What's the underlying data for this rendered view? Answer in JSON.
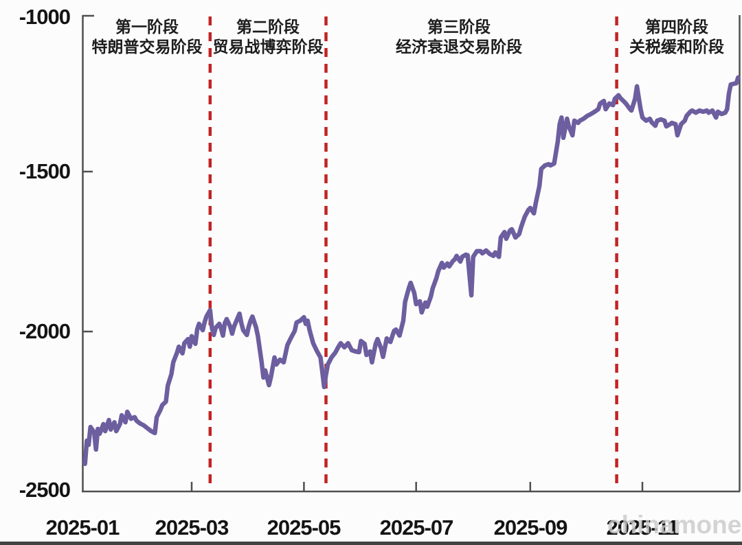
{
  "watermark": "chinamoney",
  "colors": {
    "line": "#6c5e9f",
    "dashed_line": "#c22323",
    "axis": "#4f4f4f",
    "label_text": "#141414",
    "watermark": "#c9c9c9"
  },
  "phases": [
    {
      "line1": "第一阶段",
      "line2": "特朗普交易阶段"
    },
    {
      "line1": "第二阶段",
      "line2": "贸易战博弈阶段"
    },
    {
      "line1": "第三阶段",
      "line2": "经济衰退交易阶段"
    },
    {
      "line1": "第四阶段",
      "line2": "关税缓和阶段"
    }
  ],
  "chart_data": {
    "type": "line",
    "title": "",
    "x_tick_labels": [
      "2025-01",
      "2025-03",
      "2025-05",
      "2025-07",
      "2025-09",
      "2025-11"
    ],
    "y_tick_labels": [
      "-1000",
      "-1500",
      "-2000",
      "-2500"
    ],
    "y_ticks": [
      -1000,
      -1500,
      -2000,
      -2500
    ],
    "ylim": [
      -2500,
      -1000
    ],
    "xrange": [
      "2025-01-01",
      "2025-12-24"
    ],
    "grid": false,
    "legend": "none",
    "annotations": {
      "vlines": [
        "2025-03-11",
        "2025-05-13",
        "2025-10-18"
      ],
      "phase_labels": [
        "第一阶段 特朗普交易阶段",
        "第二阶段 贸易战博弈阶段",
        "第三阶段 经济衰退交易阶段",
        "第四阶段 关税缓和阶段"
      ]
    },
    "series": [
      {
        "name": "",
        "dates": [
          "2025-01-02",
          "2025-01-03",
          "2025-01-04",
          "2025-01-05",
          "2025-01-07",
          "2025-01-08",
          "2025-01-09",
          "2025-01-10",
          "2025-01-12",
          "2025-01-13",
          "2025-01-15",
          "2025-01-16",
          "2025-01-18",
          "2025-01-19",
          "2025-01-21",
          "2025-01-22",
          "2025-01-24",
          "2025-01-25",
          "2025-01-27",
          "2025-01-29",
          "2025-01-30",
          "2025-02-01",
          "2025-02-03",
          "2025-02-05",
          "2025-02-07",
          "2025-02-09",
          "2025-02-10",
          "2025-02-12",
          "2025-02-13",
          "2025-02-15",
          "2025-02-16",
          "2025-02-18",
          "2025-02-19",
          "2025-02-21",
          "2025-02-22",
          "2025-02-24",
          "2025-02-25",
          "2025-02-27",
          "2025-02-28",
          "2025-03-01",
          "2025-03-02",
          "2025-03-03",
          "2025-03-04",
          "2025-03-05",
          "2025-03-07",
          "2025-03-08",
          "2025-03-09",
          "2025-03-11",
          "2025-03-12",
          "2025-03-13",
          "2025-03-14",
          "2025-03-16",
          "2025-03-17",
          "2025-03-18",
          "2025-03-19",
          "2025-03-20",
          "2025-03-22",
          "2025-03-23",
          "2025-03-24",
          "2025-03-26",
          "2025-03-27",
          "2025-03-28",
          "2025-03-29",
          "2025-03-31",
          "2025-04-01",
          "2025-04-02",
          "2025-04-03",
          "2025-04-05",
          "2025-04-06",
          "2025-04-08",
          "2025-04-09",
          "2025-04-10",
          "2025-04-12",
          "2025-04-13",
          "2025-04-15",
          "2025-04-16",
          "2025-04-18",
          "2025-04-20",
          "2025-04-22",
          "2025-04-24",
          "2025-04-26",
          "2025-04-27",
          "2025-04-29",
          "2025-05-01",
          "2025-05-02",
          "2025-05-03",
          "2025-05-04",
          "2025-05-06",
          "2025-05-08",
          "2025-05-10",
          "2025-05-11",
          "2025-05-12",
          "2025-05-13",
          "2025-05-14",
          "2025-05-16",
          "2025-05-18",
          "2025-05-20",
          "2025-05-21",
          "2025-05-23",
          "2025-05-25",
          "2025-05-27",
          "2025-05-29",
          "2025-05-31",
          "2025-06-01",
          "2025-06-03",
          "2025-06-04",
          "2025-06-06",
          "2025-06-07",
          "2025-06-09",
          "2025-06-10",
          "2025-06-12",
          "2025-06-13",
          "2025-06-15",
          "2025-06-17",
          "2025-06-19",
          "2025-06-20",
          "2025-06-22",
          "2025-06-24",
          "2025-06-25",
          "2025-06-27",
          "2025-06-28",
          "2025-06-30",
          "2025-07-01",
          "2025-07-03",
          "2025-07-04",
          "2025-07-06",
          "2025-07-07",
          "2025-07-09",
          "2025-07-10",
          "2025-07-12",
          "2025-07-13",
          "2025-07-15",
          "2025-07-16",
          "2025-07-18",
          "2025-07-19",
          "2025-07-21",
          "2025-07-22",
          "2025-07-23",
          "2025-07-25",
          "2025-07-26",
          "2025-07-28",
          "2025-07-29",
          "2025-07-31",
          "2025-08-01",
          "2025-08-03",
          "2025-08-05",
          "2025-08-06",
          "2025-08-08",
          "2025-08-10",
          "2025-08-12",
          "2025-08-13",
          "2025-08-15",
          "2025-08-16",
          "2025-08-18",
          "2025-08-19",
          "2025-08-21",
          "2025-08-22",
          "2025-08-24",
          "2025-08-26",
          "2025-08-27",
          "2025-08-29",
          "2025-08-31",
          "2025-09-01",
          "2025-09-03",
          "2025-09-04",
          "2025-09-06",
          "2025-09-07",
          "2025-09-09",
          "2025-09-11",
          "2025-09-12",
          "2025-09-14",
          "2025-09-16",
          "2025-09-17",
          "2025-09-18",
          "2025-09-19",
          "2025-09-21",
          "2025-09-22",
          "2025-09-24",
          "2025-09-25",
          "2025-09-27",
          "2025-09-28",
          "2025-09-30",
          "2025-10-02",
          "2025-10-04",
          "2025-10-06",
          "2025-10-08",
          "2025-10-09",
          "2025-10-11",
          "2025-10-12",
          "2025-10-14",
          "2025-10-16",
          "2025-10-17",
          "2025-10-19",
          "2025-10-20",
          "2025-10-22",
          "2025-10-23",
          "2025-10-25",
          "2025-10-26",
          "2025-10-28",
          "2025-10-29",
          "2025-10-31",
          "2025-11-01",
          "2025-11-03",
          "2025-11-05",
          "2025-11-06",
          "2025-11-08",
          "2025-11-09",
          "2025-11-11",
          "2025-11-13",
          "2025-11-14",
          "2025-11-16",
          "2025-11-17",
          "2025-11-19",
          "2025-11-20",
          "2025-11-22",
          "2025-11-24",
          "2025-11-25",
          "2025-11-27",
          "2025-11-28",
          "2025-11-30",
          "2025-12-02",
          "2025-12-04",
          "2025-12-06",
          "2025-12-07",
          "2025-12-09",
          "2025-12-11",
          "2025-12-12",
          "2025-12-14",
          "2025-12-16",
          "2025-12-17",
          "2025-12-18",
          "2025-12-19",
          "2025-12-22",
          "2025-12-23"
        ],
        "values": [
          -2420,
          -2347,
          -2360,
          -2304,
          -2321,
          -2375,
          -2310,
          -2325,
          -2295,
          -2317,
          -2282,
          -2312,
          -2289,
          -2317,
          -2295,
          -2267,
          -2289,
          -2256,
          -2278,
          -2273,
          -2284,
          -2293,
          -2299,
          -2308,
          -2317,
          -2323,
          -2273,
          -2250,
          -2235,
          -2224,
          -2174,
          -2137,
          -2100,
          -2070,
          -2051,
          -2072,
          -2040,
          -2027,
          -2051,
          -2018,
          -2033,
          -2042,
          -1997,
          -1979,
          -1999,
          -1975,
          -1956,
          -1936,
          -1992,
          -2014,
          -1992,
          -1979,
          -1994,
          -2016,
          -1977,
          -1964,
          -1988,
          -2010,
          -1988,
          -1960,
          -1947,
          -1977,
          -1999,
          -2014,
          -1988,
          -1969,
          -1956,
          -1990,
          -2018,
          -2100,
          -2148,
          -2126,
          -2172,
          -2148,
          -2085,
          -2107,
          -2092,
          -2100,
          -2046,
          -2023,
          -2001,
          -1975,
          -1969,
          -1958,
          -1979,
          -1969,
          -1997,
          -2040,
          -2064,
          -2085,
          -2129,
          -2178,
          -2139,
          -2107,
          -2085,
          -2070,
          -2049,
          -2040,
          -2053,
          -2040,
          -2062,
          -2066,
          -2068,
          -2033,
          -2042,
          -2077,
          -2066,
          -2100,
          -2042,
          -2027,
          -2057,
          -2083,
          -2025,
          -2036,
          -2001,
          -1997,
          -2016,
          -1969,
          -1910,
          -1867,
          -1850,
          -1882,
          -1917,
          -1908,
          -1943,
          -1912,
          -1925,
          -1893,
          -1867,
          -1835,
          -1813,
          -1787,
          -1802,
          -1789,
          -1798,
          -1781,
          -1776,
          -1765,
          -1783,
          -1768,
          -1761,
          -1763,
          -1889,
          -1768,
          -1750,
          -1750,
          -1757,
          -1748,
          -1759,
          -1765,
          -1754,
          -1768,
          -1707,
          -1690,
          -1711,
          -1685,
          -1681,
          -1707,
          -1696,
          -1675,
          -1642,
          -1620,
          -1614,
          -1631,
          -1599,
          -1545,
          -1491,
          -1480,
          -1476,
          -1480,
          -1474,
          -1404,
          -1350,
          -1329,
          -1393,
          -1333,
          -1357,
          -1385,
          -1339,
          -1346,
          -1339,
          -1333,
          -1324,
          -1318,
          -1311,
          -1303,
          -1285,
          -1277,
          -1303,
          -1285,
          -1290,
          -1270,
          -1259,
          -1268,
          -1279,
          -1285,
          -1301,
          -1307,
          -1270,
          -1231,
          -1303,
          -1329,
          -1339,
          -1333,
          -1344,
          -1355,
          -1339,
          -1335,
          -1339,
          -1357,
          -1350,
          -1346,
          -1350,
          -1385,
          -1350,
          -1339,
          -1324,
          -1311,
          -1307,
          -1314,
          -1307,
          -1311,
          -1307,
          -1314,
          -1307,
          -1329,
          -1311,
          -1318,
          -1314,
          -1303,
          -1253,
          -1225,
          -1221,
          -1203
        ]
      }
    ]
  }
}
